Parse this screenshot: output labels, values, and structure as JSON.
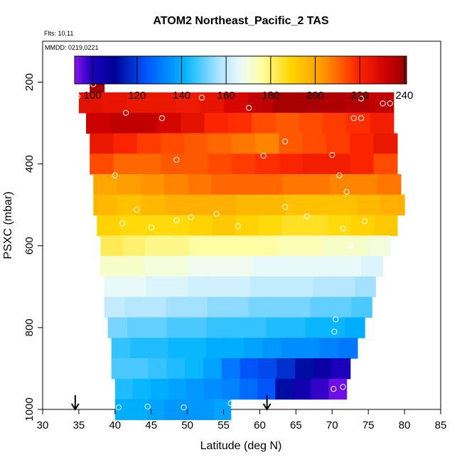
{
  "chart_data": {
    "type": "heatmap",
    "title": "ATOM2 Northeast_Pacific_2 TAS",
    "flights_label": "Flts: 10,11",
    "mmdd_label": "MMDD: 0219,0221",
    "xlabel": "Latitude (deg N)",
    "ylabel": "PSXC (mbar)",
    "xlim": [
      30,
      85
    ],
    "ylim": [
      1000,
      100
    ],
    "x_ticks": [
      "30",
      "35",
      "40",
      "45",
      "50",
      "55",
      "60",
      "65",
      "70",
      "75",
      "80",
      "85"
    ],
    "y_ticks": [
      "200",
      "400",
      "600",
      "800",
      "1000"
    ],
    "colorbar": {
      "range": [
        92,
        241
      ],
      "tick_values": [
        100,
        120,
        140,
        160,
        180,
        200,
        220,
        240
      ],
      "tick_labels": [
        "100",
        "120",
        "140",
        "160",
        "180",
        "200",
        "220",
        "240"
      ]
    },
    "rows": [
      {
        "p": 200,
        "x0": 36.5,
        "x1": 38.5,
        "v": [
          239,
          238
        ]
      },
      {
        "p": 250,
        "x0": 35,
        "x1": 78.5,
        "v": [
          226,
          225,
          224,
          224,
          223,
          225,
          230,
          234,
          238,
          238,
          237,
          236,
          234
        ]
      },
      {
        "p": 300,
        "x0": 36,
        "x1": 78.5,
        "v": [
          232,
          234,
          234,
          230,
          226,
          220,
          218,
          214,
          212,
          214,
          216,
          218,
          222
        ]
      },
      {
        "p": 350,
        "x0": 36.5,
        "x1": 79,
        "v": [
          224,
          220,
          216,
          214,
          212,
          210,
          208,
          206,
          212,
          214,
          216,
          220,
          224
        ]
      },
      {
        "p": 400,
        "x0": 36.5,
        "x1": 79,
        "v": [
          214,
          210,
          210,
          212,
          212,
          214,
          216,
          218,
          220,
          222,
          222,
          220,
          214
        ]
      },
      {
        "p": 450,
        "x0": 37,
        "x1": 79.5,
        "v": [
          200,
          202,
          204,
          206,
          208,
          210,
          210,
          210,
          208,
          208,
          206,
          206,
          208
        ]
      },
      {
        "p": 500,
        "x0": 37,
        "x1": 80,
        "v": [
          196,
          194,
          196,
          198,
          198,
          198,
          196,
          196,
          194,
          194,
          194,
          196,
          198
        ]
      },
      {
        "p": 550,
        "x0": 37.5,
        "x1": 79,
        "v": [
          190,
          188,
          188,
          188,
          190,
          192,
          190,
          188,
          186,
          186,
          188,
          190,
          192
        ]
      },
      {
        "p": 600,
        "x0": 38,
        "x1": 78,
        "v": [
          182,
          180,
          178,
          178,
          176,
          176,
          176,
          176,
          174,
          174,
          172,
          172,
          170
        ]
      },
      {
        "p": 650,
        "x0": 38,
        "x1": 77,
        "v": [
          172,
          172,
          170,
          170,
          168,
          168,
          168,
          166,
          166,
          166,
          166,
          166,
          164
        ]
      },
      {
        "p": 700,
        "x0": 38.5,
        "x1": 76,
        "v": [
          166,
          166,
          164,
          164,
          162,
          162,
          162,
          160,
          160,
          160,
          158,
          158,
          156
        ]
      },
      {
        "p": 750,
        "x0": 38.5,
        "x1": 75.5,
        "v": [
          160,
          158,
          158,
          156,
          156,
          154,
          154,
          152,
          152,
          152,
          150,
          150,
          148
        ]
      },
      {
        "p": 800,
        "x0": 39,
        "x1": 74.5,
        "v": [
          152,
          150,
          150,
          148,
          148,
          146,
          146,
          146,
          144,
          144,
          142,
          142,
          140
        ]
      },
      {
        "p": 850,
        "x0": 39.5,
        "x1": 73.5,
        "v": [
          146,
          144,
          144,
          142,
          142,
          140,
          140,
          138,
          136,
          134,
          134,
          132,
          130
        ]
      },
      {
        "p": 900,
        "x0": 39.5,
        "x1": 72.5,
        "v": [
          148,
          148,
          146,
          144,
          142,
          138,
          130,
          124,
          122,
          118,
          112,
          106,
          100
        ]
      },
      {
        "p": 950,
        "x0": 40,
        "x1": 72,
        "v": [
          144,
          142,
          140,
          138,
          136,
          134,
          132,
          128,
          124,
          112,
          104,
          98,
          94
        ]
      },
      {
        "p": 1000,
        "x0": 40,
        "x1": 56,
        "v": [
          140,
          140,
          138,
          136,
          136,
          136,
          138
        ]
      }
    ],
    "points": [
      [
        34.8,
        235
      ],
      [
        37,
        205
      ],
      [
        38,
        198
      ],
      [
        39,
        198
      ],
      [
        41.5,
        275
      ],
      [
        46.5,
        288
      ],
      [
        52,
        238
      ],
      [
        58.5,
        263
      ],
      [
        68,
        218
      ],
      [
        74,
        240
      ],
      [
        77,
        252
      ],
      [
        78,
        252
      ],
      [
        73,
        288
      ],
      [
        74,
        288
      ],
      [
        63.5,
        345
      ],
      [
        60.5,
        380
      ],
      [
        70,
        378
      ],
      [
        40,
        428
      ],
      [
        71,
        428
      ],
      [
        48.5,
        390
      ],
      [
        72,
        468
      ],
      [
        43,
        512
      ],
      [
        41,
        545
      ],
      [
        45,
        555
      ],
      [
        48.5,
        538
      ],
      [
        50.5,
        530
      ],
      [
        54,
        522
      ],
      [
        57,
        552
      ],
      [
        63.5,
        505
      ],
      [
        66.5,
        528
      ],
      [
        71.5,
        558
      ],
      [
        74.5,
        540
      ],
      [
        72.5,
        600
      ],
      [
        70.5,
        780
      ],
      [
        70.3,
        810
      ],
      [
        40.5,
        995
      ],
      [
        44.5,
        993
      ],
      [
        49.5,
        995
      ],
      [
        56,
        985
      ],
      [
        70.2,
        950
      ],
      [
        71.5,
        945
      ]
    ],
    "arrows_x": [
      34.5,
      61
    ]
  }
}
